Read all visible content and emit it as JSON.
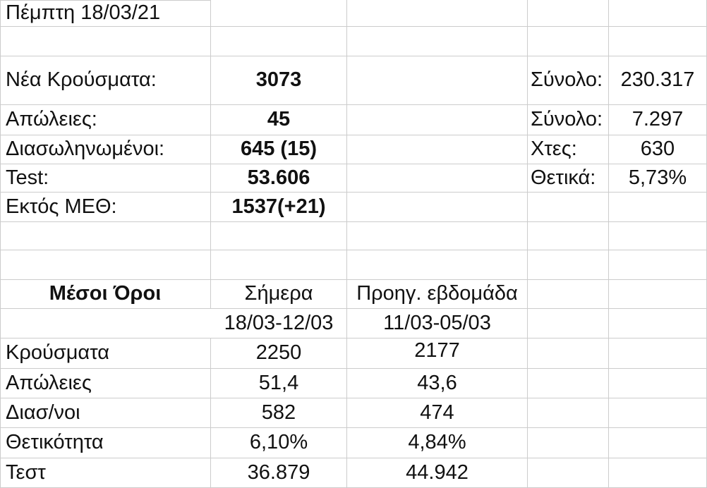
{
  "app": {
    "kind_label": "spreadsheet-cells-view",
    "date_label": "Πέμπτη 18/03/21"
  },
  "colors": {
    "background": "#ffffff",
    "gridline": "#cccccc",
    "text": "#111111"
  },
  "daily": {
    "rows": [
      {
        "label": "Νέα Κρούσματα:",
        "value": "3073",
        "side_label": "Σύνολο:",
        "side_value": "230.317"
      },
      {
        "label": "Απώλειες:",
        "value": "45",
        "side_label": "Σύνολο:",
        "side_value": "7.297"
      },
      {
        "label": "Διασωληνωμένοι:",
        "value": "645 (15)",
        "side_label": "Χτες:",
        "side_value": "630"
      },
      {
        "label": "Test:",
        "value": "53.606",
        "side_label": "Θετικά:",
        "side_value": "5,73%"
      },
      {
        "label": "Εκτός ΜΕΘ:",
        "value": "1537(+21)",
        "side_label": "",
        "side_value": ""
      }
    ]
  },
  "averages": {
    "title": "Μέσοι Όροι",
    "col_today": "Σήμερα",
    "col_prev": "Προηγ. εβδομάδα",
    "range_today": "18/03-12/03",
    "range_prev": "11/03-05/03",
    "rows": [
      {
        "label": "Κρούσματα",
        "today": "2250",
        "prev": "2177"
      },
      {
        "label": "Απώλειες",
        "today": "51,4",
        "prev": "43,6"
      },
      {
        "label": "Διασ/νοι",
        "today": "582",
        "prev": "474"
      },
      {
        "label": "Θετικότητα",
        "today": "6,10%",
        "prev": "4,84%"
      },
      {
        "label": "Τεστ",
        "today": "36.879",
        "prev": "44.942"
      }
    ]
  }
}
